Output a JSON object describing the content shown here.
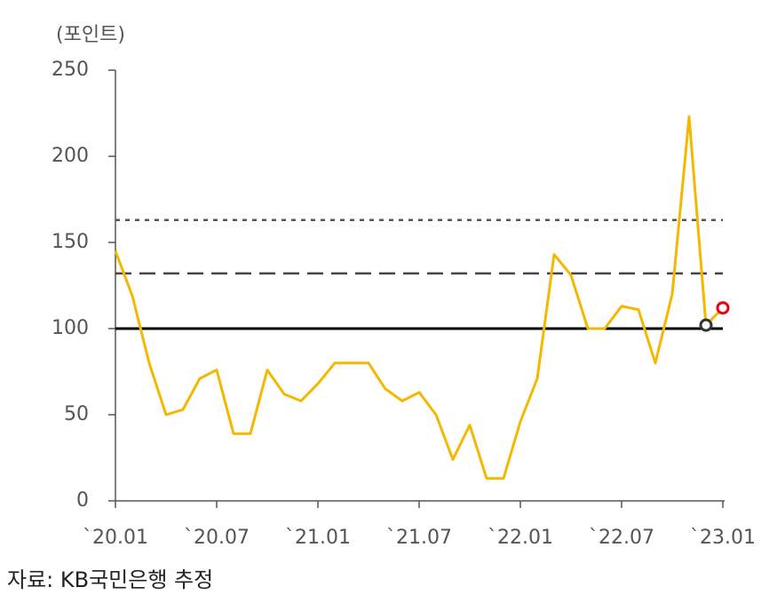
{
  "chart_data": {
    "type": "line",
    "y_axis_label": "(포인트)",
    "source": "자료: KB국민은행 추정",
    "categories": [
      "`20.01",
      null,
      null,
      null,
      null,
      null,
      "`20.07",
      null,
      null,
      null,
      null,
      null,
      "`21.01",
      null,
      null,
      null,
      null,
      null,
      "`21.07",
      null,
      null,
      null,
      null,
      null,
      "`22.01",
      null,
      null,
      null,
      null,
      null,
      "`22.07",
      null,
      null,
      null,
      null,
      null,
      "`23.01"
    ],
    "series": [
      {
        "name": null,
        "color": "#f5b800",
        "values": [
          145,
          119,
          80,
          50,
          53,
          71,
          76,
          39,
          39,
          76,
          62,
          58,
          68,
          80,
          80,
          80,
          65,
          58,
          63,
          50,
          24,
          44,
          13,
          13,
          46,
          71,
          143,
          131,
          100,
          100,
          113,
          111,
          80,
          120,
          223,
          102,
          112
        ]
      }
    ],
    "highlight_points": [
      {
        "index": 35,
        "color": "#333333"
      },
      {
        "index": 36,
        "color": "#e60012"
      }
    ],
    "reference_lines": [
      {
        "value": 100,
        "style": "solid",
        "color": "#000000"
      },
      {
        "value": 132,
        "style": "dashed",
        "color": "#444444"
      },
      {
        "value": 163,
        "style": "dotted",
        "color": "#555555"
      }
    ],
    "ylim": [
      0,
      250
    ],
    "yticks": [
      0,
      50,
      100,
      150,
      200,
      250
    ],
    "grid": false
  }
}
